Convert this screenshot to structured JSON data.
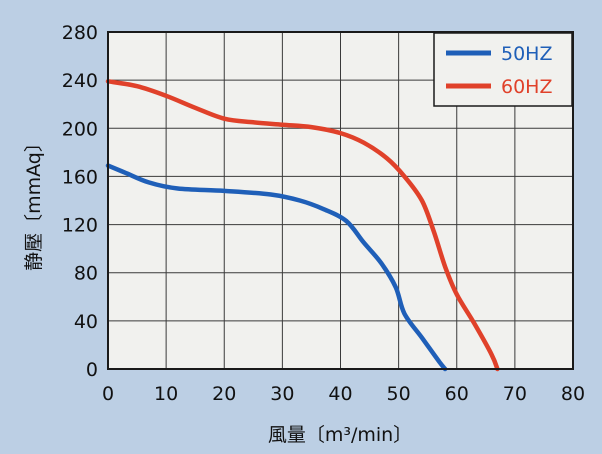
{
  "chart_data": {
    "type": "line",
    "xlabel": "風量〔m³/min〕",
    "ylabel": "静壓〔mmAq〕",
    "xlim": [
      0,
      80
    ],
    "ylim": [
      0,
      280
    ],
    "xticks": [
      "0",
      "10",
      "20",
      "30",
      "40",
      "50",
      "60",
      "70",
      "80"
    ],
    "yticks": [
      "0",
      "40",
      "80",
      "120",
      "160",
      "200",
      "240",
      "280"
    ],
    "grid": true,
    "legend_position": "top-right",
    "series": [
      {
        "name": "50HZ",
        "color": "#1f5fb8",
        "points": [
          [
            0,
            169
          ],
          [
            3,
            163
          ],
          [
            7,
            155
          ],
          [
            12,
            150
          ],
          [
            20,
            148
          ],
          [
            28,
            145
          ],
          [
            33,
            140
          ],
          [
            37,
            133
          ],
          [
            41,
            123
          ],
          [
            44,
            105
          ],
          [
            47,
            88
          ],
          [
            49.5,
            68
          ],
          [
            51,
            46
          ],
          [
            54,
            26
          ],
          [
            57,
            6
          ],
          [
            58,
            0
          ]
        ]
      },
      {
        "name": "60HZ",
        "color": "#e0412a",
        "points": [
          [
            0,
            239
          ],
          [
            5,
            235
          ],
          [
            10,
            227
          ],
          [
            15,
            217
          ],
          [
            20,
            208
          ],
          [
            25,
            205
          ],
          [
            30,
            203
          ],
          [
            35,
            201
          ],
          [
            40,
            196
          ],
          [
            44,
            188
          ],
          [
            48,
            175
          ],
          [
            51,
            160
          ],
          [
            54,
            140
          ],
          [
            56,
            115
          ],
          [
            58,
            85
          ],
          [
            60,
            62
          ],
          [
            63,
            38
          ],
          [
            66,
            12
          ],
          [
            67,
            0
          ]
        ]
      }
    ]
  }
}
